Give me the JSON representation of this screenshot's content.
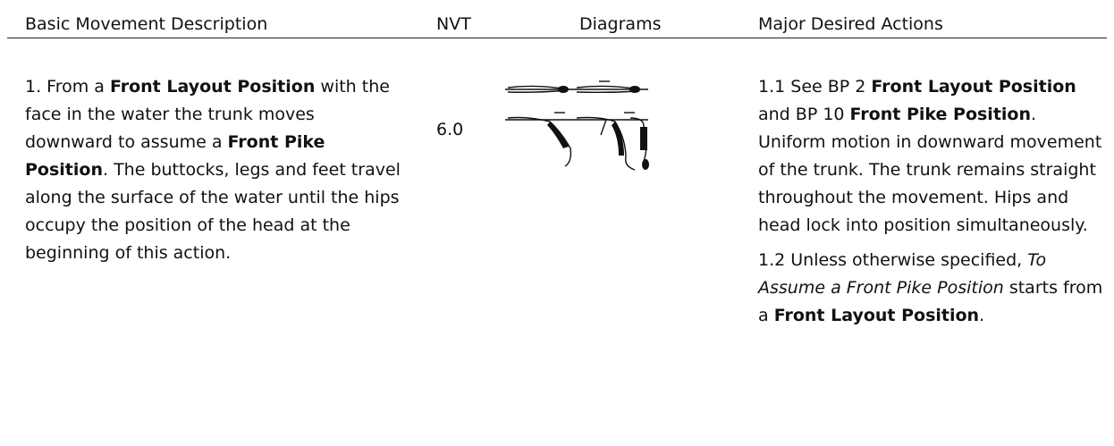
{
  "table": {
    "header": [
      "Basic Movement Description",
      "NVT",
      "Diagrams",
      "Major Desired Actions"
    ],
    "rows": [
      {
        "description": [
          {
            "text": "1. From a "
          },
          {
            "text": "Front Layout Position",
            "style": "bold"
          },
          {
            "text": " with the face in the water the trunk moves downward to assume a "
          },
          {
            "text": "Front Pike Position",
            "style": "bold"
          },
          {
            "text": ". The buttocks, legs and feet travel along the surface of the water until the hips occupy the position of the head at the beginning of this action."
          }
        ],
        "nvt": "6.0",
        "actions": [
          [
            {
              "text": "1.1 See BP 2 "
            },
            {
              "text": "Front Layout Position",
              "style": "bold"
            },
            {
              "text": " and BP 10 "
            },
            {
              "text": "Front Pike Position",
              "style": "bold"
            },
            {
              "text": ". Uniform motion in downward movement of the trunk. The trunk remains straight throughout the movement. Hips and head lock into position simultaneously."
            }
          ],
          [
            {
              "text": "1.2 Unless otherwise specified, "
            },
            {
              "text": "To Assume a Front Pike Position",
              "style": "italic"
            },
            {
              "text": " starts from a "
            },
            {
              "text": "Front Layout Position",
              "style": "bold"
            },
            {
              "text": "."
            }
          ]
        ]
      }
    ]
  }
}
